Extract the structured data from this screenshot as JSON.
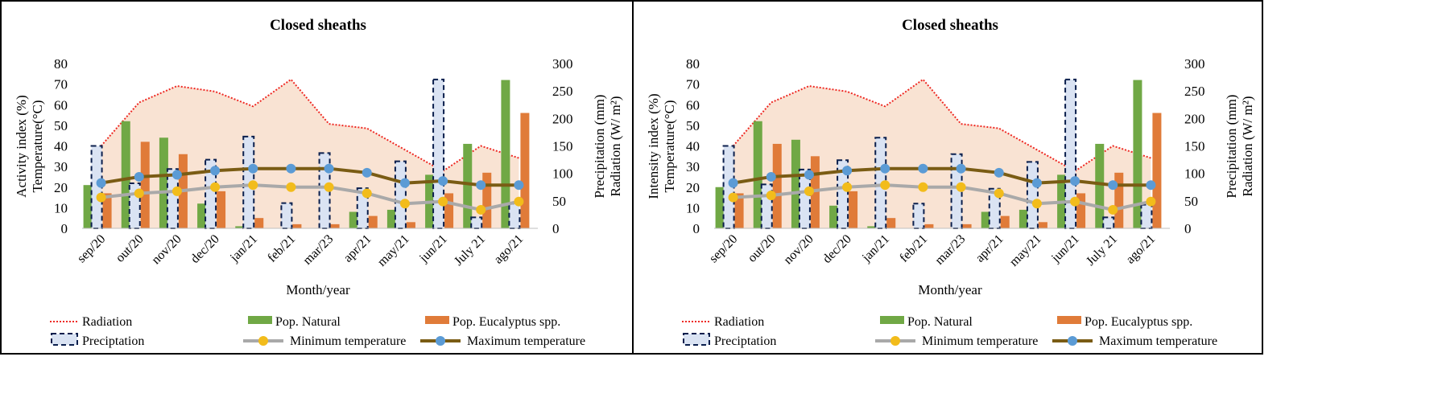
{
  "chart_data": [
    {
      "type": "bar",
      "title": "Closed sheaths",
      "xlabel": "Month/year",
      "ylabel": "Activity index (%)",
      "ylabel2": "Temperature(°C)",
      "y2label": "Precipitation (mm)",
      "y2label2": "Radiation (W/ m²)",
      "ylim": [
        0,
        80
      ],
      "y2lim": [
        0,
        300
      ],
      "yticks": [
        0,
        10,
        20,
        30,
        40,
        50,
        60,
        70,
        80
      ],
      "y2ticks": [
        0,
        50,
        100,
        150,
        200,
        250,
        300
      ],
      "grid": false,
      "legend": "bottom",
      "categories": [
        "sep/20",
        "out/20",
        "nov/20",
        "dec/20",
        "jan/21",
        "feb/21",
        "mar/23",
        "apr/21",
        "may/21",
        "jun/21",
        "July 21",
        "ago/21"
      ],
      "series": [
        {
          "name": "Radiation",
          "axis": "right",
          "kind": "area",
          "color": "#f4511e",
          "values": [
            150,
            229,
            259,
            249,
            222,
            271,
            190,
            182,
            143,
            104,
            150,
            128
          ]
        },
        {
          "name": "Pop. Natural",
          "axis": "left",
          "kind": "bar",
          "color": "#70a845",
          "values": [
            21,
            52,
            44,
            12,
            1,
            0,
            0,
            8,
            9,
            26,
            41,
            72
          ]
        },
        {
          "name": "Pop. Eucalyptus spp.",
          "axis": "left",
          "kind": "bar",
          "color": "#e07b39",
          "values": [
            17,
            42,
            36,
            18,
            5,
            2,
            2,
            6,
            3,
            17,
            27,
            56
          ]
        },
        {
          "name": "Preciptation",
          "axis": "right",
          "kind": "bar",
          "color": "#dae3f3",
          "values": [
            150,
            82,
            108,
            125,
            167,
            46,
            137,
            73,
            122,
            271,
            20,
            45
          ]
        },
        {
          "name": "Minimum temperature",
          "axis": "left",
          "kind": "line",
          "color": "#a9a9a9",
          "marker": "#f2bc1b",
          "values": [
            15,
            17,
            18,
            20,
            21,
            20,
            20,
            17,
            12,
            13,
            9,
            13
          ]
        },
        {
          "name": "Maximum temperature",
          "axis": "left",
          "kind": "line",
          "color": "#7a5c14",
          "marker": "#5b9bd5",
          "values": [
            22,
            25,
            26,
            28,
            29,
            29,
            29,
            27,
            22,
            23,
            21,
            21
          ]
        }
      ]
    },
    {
      "type": "bar",
      "title": "Closed sheaths",
      "xlabel": "Month/year",
      "ylabel": "Intensity index (%)",
      "ylabel2": "Temperature(°C)",
      "y2label": "Precipitation (mm)",
      "y2label2": "Radiation (W/ m²)",
      "ylim": [
        0,
        80
      ],
      "y2lim": [
        0,
        300
      ],
      "yticks": [
        0,
        10,
        20,
        30,
        40,
        50,
        60,
        70,
        80
      ],
      "y2ticks": [
        0,
        50,
        100,
        150,
        200,
        250,
        300
      ],
      "grid": false,
      "legend": "bottom",
      "categories": [
        "sep/20",
        "out/20",
        "nov/20",
        "dec/20",
        "jan/21",
        "feb/21",
        "mar/23",
        "apr/21",
        "may/21",
        "jun/21",
        "July 21",
        "ago/21"
      ],
      "series": [
        {
          "name": "Radiation",
          "axis": "right",
          "kind": "area",
          "color": "#f4511e",
          "values": [
            150,
            229,
            259,
            249,
            222,
            271,
            190,
            182,
            143,
            104,
            150,
            128
          ]
        },
        {
          "name": "Pop. Natural",
          "axis": "left",
          "kind": "bar",
          "color": "#70a845",
          "values": [
            20,
            52,
            43,
            11,
            1,
            0,
            0,
            8,
            9,
            26,
            41,
            72
          ]
        },
        {
          "name": "Pop. Eucalyptus spp.",
          "axis": "left",
          "kind": "bar",
          "color": "#e07b39",
          "values": [
            17,
            41,
            35,
            18,
            5,
            2,
            2,
            6,
            3,
            17,
            27,
            56
          ]
        },
        {
          "name": "Preciptation",
          "axis": "right",
          "kind": "bar",
          "color": "#dae3f3",
          "values": [
            150,
            80,
            107,
            124,
            165,
            45,
            135,
            72,
            121,
            271,
            20,
            43
          ]
        },
        {
          "name": "Minimum temperature",
          "axis": "left",
          "kind": "line",
          "color": "#a9a9a9",
          "marker": "#f2bc1b",
          "values": [
            15,
            16,
            18,
            20,
            21,
            20,
            20,
            17,
            12,
            13,
            9,
            13
          ]
        },
        {
          "name": "Maximum temperature",
          "axis": "left",
          "kind": "line",
          "color": "#7a5c14",
          "marker": "#5b9bd5",
          "values": [
            22,
            25,
            26,
            28,
            29,
            29,
            29,
            27,
            22,
            23,
            21,
            21
          ]
        }
      ]
    }
  ]
}
